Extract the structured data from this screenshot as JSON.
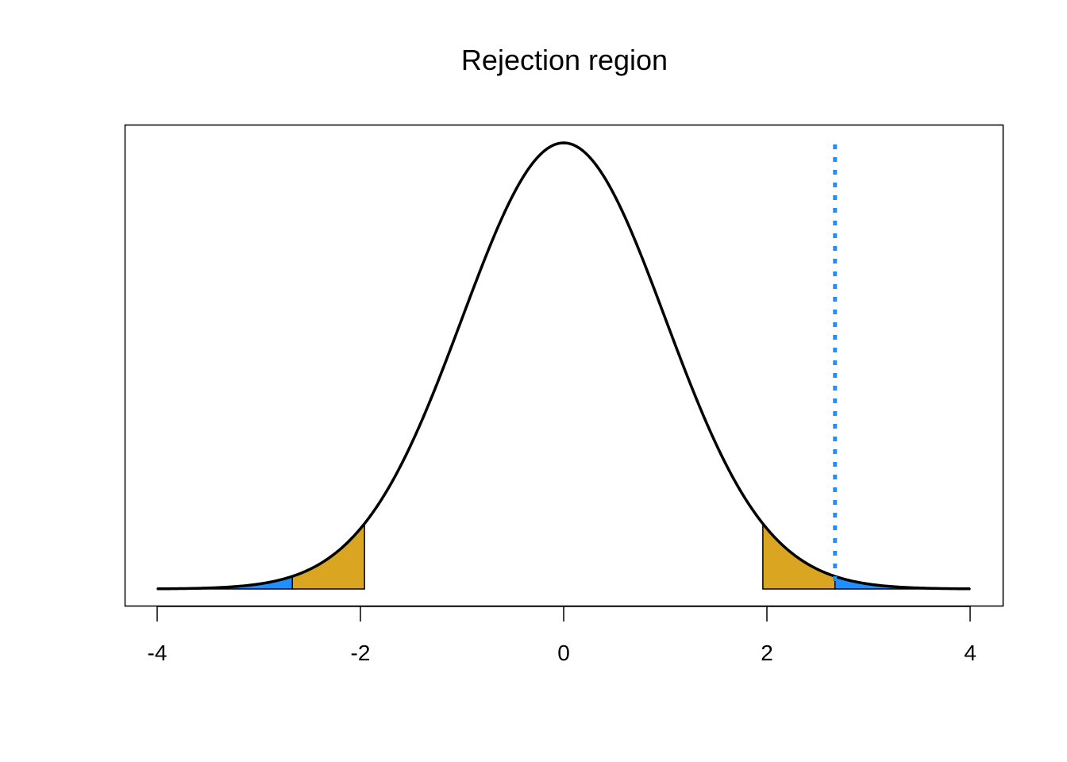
{
  "chart_data": {
    "type": "area",
    "title": "Rejection region",
    "xlabel": "",
    "ylabel": "",
    "xlim": [
      -4,
      4
    ],
    "ylim": [
      0,
      0.4
    ],
    "x_ticks": [
      -4,
      -2,
      0,
      2,
      4
    ],
    "x_tick_labels": [
      "-4",
      "-2",
      "0",
      "2",
      "4"
    ],
    "y_axis_shown": false,
    "grid": false,
    "curve": {
      "distribution": "standard normal density",
      "x_range": [
        -4,
        4
      ],
      "color": "#000000"
    },
    "shaded_regions": [
      {
        "from": -4,
        "to": -2.67,
        "color": "#1E90FF"
      },
      {
        "from": -2.67,
        "to": -1.96,
        "color": "#DAA520"
      },
      {
        "from": 1.96,
        "to": 2.67,
        "color": "#DAA520"
      },
      {
        "from": 2.67,
        "to": 4,
        "color": "#1E90FF"
      }
    ],
    "reference_line": {
      "x": 2.67,
      "style": "dotted",
      "color": "#1E90FF"
    }
  }
}
